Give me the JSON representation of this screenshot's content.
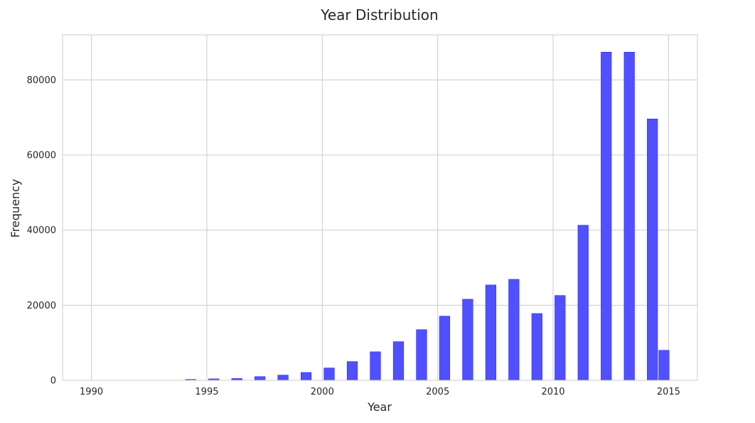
{
  "chart_data": {
    "type": "bar",
    "title": "Year Distribution",
    "xlabel": "Year",
    "ylabel": "Frequency",
    "xlim": [
      1988.75,
      2016.25
    ],
    "ylim": [
      0,
      92000
    ],
    "xticks": [
      1990,
      1995,
      2000,
      2005,
      2010,
      2015
    ],
    "yticks": [
      0,
      20000,
      40000,
      60000,
      80000
    ],
    "grid": true,
    "legend": "none",
    "bar_width_years": 0.45,
    "bar_color": "#4d4dff",
    "bar_edge_color": "#2b2bff",
    "bars": [
      {
        "x": 1994.3,
        "value": 250
      },
      {
        "x": 1995.3,
        "value": 400
      },
      {
        "x": 1996.3,
        "value": 500
      },
      {
        "x": 1997.3,
        "value": 1000
      },
      {
        "x": 1998.3,
        "value": 1400
      },
      {
        "x": 1999.3,
        "value": 2100
      },
      {
        "x": 2000.3,
        "value": 3300
      },
      {
        "x": 2001.3,
        "value": 5000
      },
      {
        "x": 2002.3,
        "value": 7600
      },
      {
        "x": 2003.3,
        "value": 10300
      },
      {
        "x": 2004.3,
        "value": 13500
      },
      {
        "x": 2005.3,
        "value": 17100
      },
      {
        "x": 2006.3,
        "value": 21600
      },
      {
        "x": 2007.3,
        "value": 25400
      },
      {
        "x": 2008.3,
        "value": 26900
      },
      {
        "x": 2009.3,
        "value": 17800
      },
      {
        "x": 2010.3,
        "value": 22600
      },
      {
        "x": 2011.3,
        "value": 41300
      },
      {
        "x": 2012.3,
        "value": 87400
      },
      {
        "x": 2013.3,
        "value": 87400
      },
      {
        "x": 2014.3,
        "value": 69600
      },
      {
        "x": 2014.8,
        "value": 8000
      }
    ]
  }
}
